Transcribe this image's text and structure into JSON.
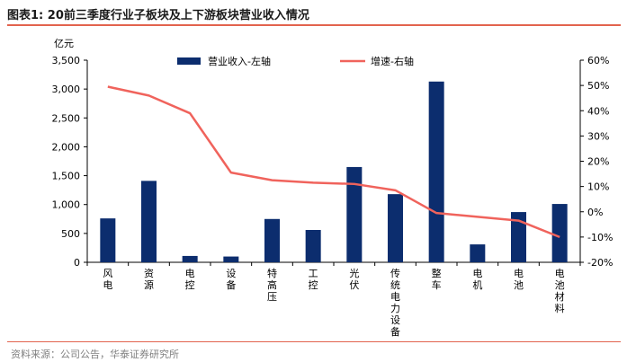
{
  "header": {
    "title": "图表1:   20前三季度行业子板块及上下游板块营业收入情况"
  },
  "footer": {
    "source": "资料来源：公司公告，华泰证券研究所"
  },
  "colors": {
    "accent": "#e2634e",
    "bar": "#0c2d6e",
    "line": "#f0635c"
  },
  "chart_data": {
    "type": "bar",
    "categories": [
      "风电",
      "资源",
      "电控",
      "设备",
      "特高压",
      "工控",
      "光伏",
      "传统电力设备",
      "整车",
      "电机",
      "电池",
      "电池材料"
    ],
    "y_left_unit": "亿元",
    "y_left_ticks": [
      "0",
      "500",
      "1,000",
      "1,500",
      "2,000",
      "2,500",
      "3,000",
      "3,500"
    ],
    "y_left_lim": [
      0,
      3500
    ],
    "y_right_ticks": [
      "-20%",
      "-10%",
      "0%",
      "10%",
      "20%",
      "30%",
      "40%",
      "50%",
      "60%"
    ],
    "y_right_lim": [
      -20,
      60
    ],
    "series": [
      {
        "name": "营业收入-左轴",
        "type": "bar",
        "axis": "left",
        "values": [
          760,
          1410,
          110,
          100,
          750,
          560,
          1650,
          1180,
          3130,
          310,
          870,
          1010
        ]
      },
      {
        "name": "增速-右轴",
        "type": "line",
        "axis": "right",
        "values": [
          49.5,
          46,
          39,
          15.5,
          12.5,
          11.5,
          11,
          8.5,
          -0.5,
          -2,
          -3.5,
          -10
        ]
      }
    ],
    "legend_position": "top",
    "grid": false
  }
}
